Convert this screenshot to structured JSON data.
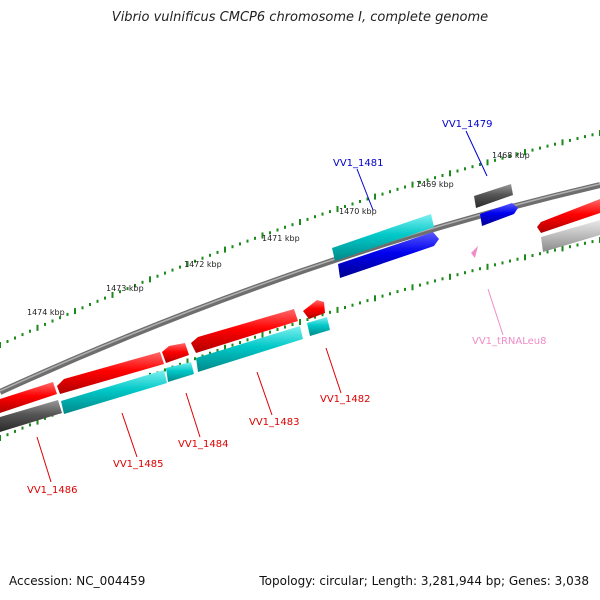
{
  "title": "Vibrio vulnificus CMCP6 chromosome I, complete genome",
  "footer": {
    "accession": "Accession: NC_004459",
    "summary": "Topology: circular; Length: 3,281,944 bp; Genes: 3,038"
  },
  "colors": {
    "forward_gene": "#ff0000",
    "forward_cds": "#0000ee",
    "reverse_gene": "#555555",
    "reverse_cds": "#00c8c8",
    "trna": "#f08cc8",
    "tick": "#1a8a1a",
    "label_forward": "#0000cc",
    "label_reverse": "#dd0000"
  },
  "ruler": {
    "ticks": [
      "1468 kbp",
      "1469 kbp",
      "1470 kbp",
      "1471 kbp",
      "1472 kbp",
      "1473 kbp",
      "1474 kbp"
    ]
  },
  "genes": [
    {
      "name": "VV1_1479",
      "label": "VV1_1479",
      "strand": "forward"
    },
    {
      "name": "VV1_1481",
      "label": "VV1_1481",
      "strand": "forward"
    },
    {
      "name": "VV1_tRNALeu8",
      "label": "VV1_tRNALeu8",
      "strand": "reverse",
      "type": "tRNA"
    },
    {
      "name": "VV1_1482",
      "label": "VV1_1482",
      "strand": "reverse"
    },
    {
      "name": "VV1_1483",
      "label": "VV1_1483",
      "strand": "reverse"
    },
    {
      "name": "VV1_1484",
      "label": "VV1_1484",
      "strand": "reverse"
    },
    {
      "name": "VV1_1485",
      "label": "VV1_1485",
      "strand": "reverse"
    },
    {
      "name": "VV1_1486",
      "label": "VV1_1486",
      "strand": "reverse"
    }
  ]
}
